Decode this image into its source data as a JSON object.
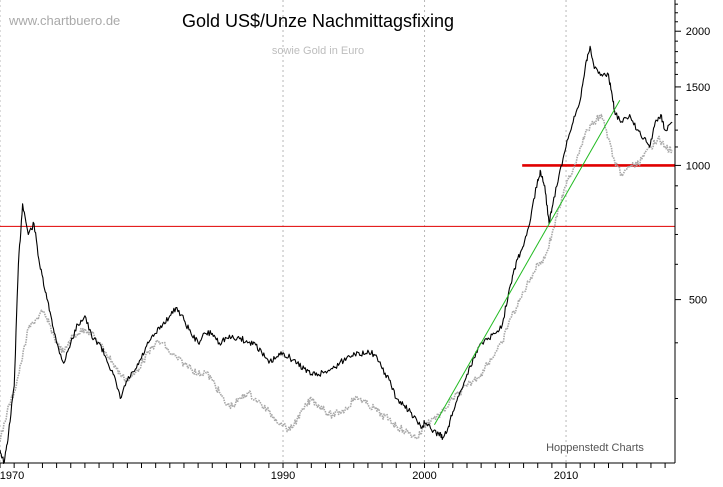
{
  "watermark": "www.chartbuero.de",
  "title": "Gold US$/Unze Nachmittagsfixing",
  "subtitle": "sowie Gold in Euro",
  "source": "Hoppenstedt Charts",
  "colors": {
    "usd_series": "#000000",
    "eur_series": "#a8a8a8",
    "horizontal_lines": "#e00000",
    "trendline": "#22bb22",
    "grid": "#b8b8b8",
    "axis": "#000000"
  },
  "chart_data": {
    "type": "line",
    "x_scale": "time (years)",
    "y_scale": "log",
    "ylim": [
      215,
      2350
    ],
    "xlim": [
      1970.0,
      2017.7
    ],
    "x_tick_labels": [
      "1970",
      "1990",
      "2000",
      "2010"
    ],
    "y_tick_labels": [
      "500",
      "1000",
      "1500",
      "2000"
    ],
    "grid": "vertical dotted at decades",
    "series": [
      {
        "role": "usd",
        "x": [
          1970.0,
          1970.3,
          1970.6,
          1971.0,
          1971.3,
          1971.6,
          1972.0,
          1972.4,
          1972.8,
          1973.2,
          1973.6,
          1974.0,
          1974.5,
          1975.0,
          1975.5,
          1976.0,
          1976.5,
          1977.0,
          1977.5,
          1978.0,
          1978.5,
          1979.0,
          1979.5,
          1980.0,
          1980.5,
          1981.0,
          1981.5,
          1982.0,
          1982.5,
          1983.0,
          1983.5,
          1984.0,
          1984.5,
          1985.0,
          1985.5,
          1986.0,
          1986.5,
          1987.0,
          1987.5,
          1988.0,
          1988.5,
          1989.0,
          1989.5,
          1990.0,
          1990.5,
          1991.0,
          1991.5,
          1992.0,
          1992.5,
          1993.0,
          1993.5,
          1994.0,
          1994.5,
          1995.0,
          1995.5,
          1996.0,
          1996.5,
          1997.0,
          1997.5,
          1998.0,
          1998.5,
          1999.0,
          1999.5,
          1999.8,
          2000.0,
          2000.5,
          2001.0,
          2001.3,
          2001.7,
          2002.0,
          2002.5,
          2003.0,
          2003.5,
          2004.0,
          2004.5,
          2005.0,
          2005.5,
          2006.0,
          2006.3,
          2006.6,
          2007.0,
          2007.5,
          2008.0,
          2008.2,
          2008.5,
          2008.8,
          2009.0,
          2009.5,
          2010.0,
          2010.5,
          2011.0,
          2011.4,
          2011.7,
          2012.0,
          2012.5,
          2013.0,
          2013.3,
          2013.5,
          2014.0,
          2014.5,
          2015.0,
          2015.5,
          2015.9,
          2016.3,
          2016.7,
          2017.0,
          2017.5
        ],
        "values": [
          230,
          215,
          250,
          320,
          600,
          820,
          700,
          740,
          600,
          520,
          460,
          400,
          360,
          400,
          440,
          460,
          410,
          400,
          370,
          340,
          300,
          330,
          345,
          370,
          400,
          420,
          440,
          460,
          480,
          450,
          420,
          400,
          420,
          420,
          400,
          410,
          410,
          410,
          400,
          400,
          380,
          360,
          370,
          380,
          370,
          360,
          350,
          340,
          340,
          345,
          350,
          360,
          370,
          380,
          375,
          385,
          375,
          350,
          330,
          300,
          290,
          280,
          265,
          258,
          265,
          255,
          250,
          245,
          260,
          280,
          310,
          340,
          370,
          400,
          410,
          420,
          440,
          530,
          580,
          620,
          660,
          760,
          930,
          970,
          900,
          740,
          800,
          950,
          1100,
          1250,
          1400,
          1700,
          1850,
          1650,
          1600,
          1600,
          1400,
          1300,
          1250,
          1300,
          1200,
          1150,
          1100,
          1250,
          1300,
          1200,
          1250
        ]
      },
      {
        "role": "eur",
        "x": [
          1970.0,
          1970.5,
          1971.0,
          1971.5,
          1972.0,
          1972.5,
          1973.0,
          1973.5,
          1974.0,
          1974.5,
          1975.0,
          1975.5,
          1976.0,
          1976.5,
          1977.0,
          1977.5,
          1978.0,
          1978.5,
          1979.0,
          1979.5,
          1980.0,
          1980.5,
          1981.0,
          1981.5,
          1982.0,
          1982.5,
          1983.0,
          1983.5,
          1984.0,
          1984.5,
          1985.0,
          1985.5,
          1986.0,
          1986.5,
          1987.0,
          1987.5,
          1988.0,
          1988.5,
          1989.0,
          1989.5,
          1990.0,
          1990.5,
          1991.0,
          1991.5,
          1992.0,
          1992.5,
          1993.0,
          1993.5,
          1994.0,
          1994.5,
          1995.0,
          1995.5,
          1996.0,
          1996.5,
          1997.0,
          1997.5,
          1998.0,
          1998.5,
          1999.0,
          1999.5,
          2000.0,
          2000.5,
          2001.0,
          2001.5,
          2002.0,
          2002.5,
          2003.0,
          2003.5,
          2004.0,
          2004.5,
          2005.0,
          2005.5,
          2006.0,
          2006.5,
          2007.0,
          2007.5,
          2008.0,
          2008.5,
          2009.0,
          2009.5,
          2010.0,
          2010.5,
          2011.0,
          2011.5,
          2012.0,
          2012.5,
          2013.0,
          2013.5,
          2014.0,
          2014.5,
          2015.0,
          2015.5,
          2016.0,
          2016.5,
          2017.0,
          2017.5
        ],
        "values": [
          240,
          280,
          310,
          360,
          430,
          450,
          470,
          440,
          400,
          380,
          410,
          420,
          430,
          420,
          400,
          380,
          360,
          340,
          330,
          340,
          360,
          380,
          400,
          400,
          380,
          370,
          360,
          350,
          340,
          345,
          330,
          310,
          290,
          290,
          300,
          310,
          300,
          290,
          280,
          270,
          260,
          255,
          270,
          285,
          300,
          290,
          280,
          275,
          280,
          285,
          300,
          300,
          290,
          285,
          275,
          270,
          260,
          255,
          250,
          245,
          260,
          270,
          275,
          285,
          300,
          310,
          320,
          330,
          340,
          360,
          380,
          400,
          450,
          480,
          520,
          560,
          600,
          620,
          700,
          800,
          900,
          980,
          1100,
          1200,
          1250,
          1300,
          1150,
          1000,
          950,
          1000,
          1000,
          1050,
          1100,
          1150,
          1100,
          1080
        ]
      }
    ],
    "horizontal_lines": [
      {
        "value": 730,
        "x_from": 1970.0,
        "x_to": 2017.7,
        "weight": "thin"
      },
      {
        "value": 1000,
        "x_from": 2006.9,
        "x_to": 2017.7,
        "weight": "thick"
      }
    ],
    "trendline": {
      "x": [
        2000.7,
        2013.8
      ],
      "y": [
        262,
        1400
      ]
    }
  }
}
